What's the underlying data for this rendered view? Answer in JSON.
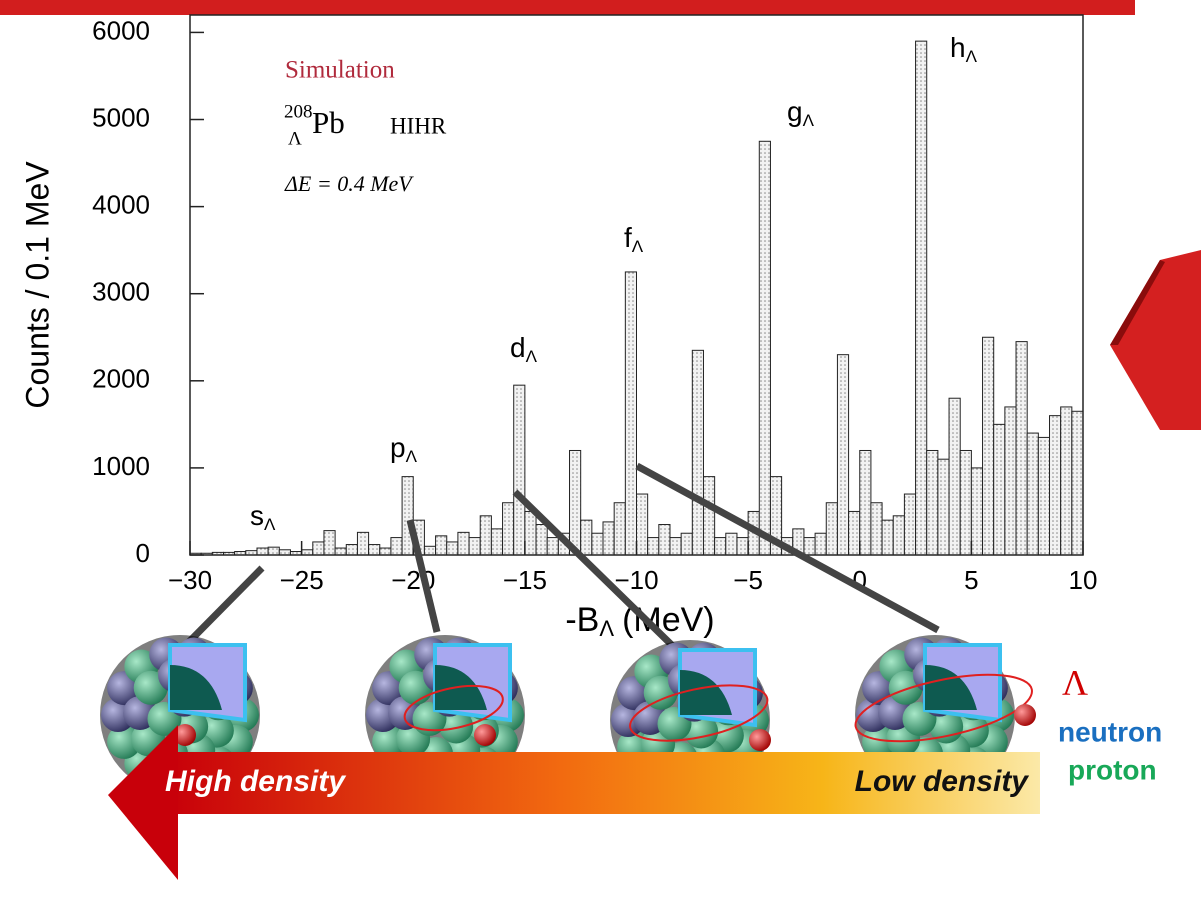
{
  "chart_data": {
    "type": "histogram",
    "y_label": "Counts / 0.1 MeV",
    "x_label": {
      "main": "-B",
      "sub": "Λ",
      "unit": "(MeV)"
    },
    "bins": [
      -30,
      -29.5,
      -29,
      -28.5,
      -28,
      -27.5,
      -27,
      -26.5,
      -26,
      -25.5,
      -25,
      -24.5,
      -24,
      -23.5,
      -23,
      -22.5,
      -22,
      -21.5,
      -21,
      -20.5,
      -20,
      -19.5,
      -19,
      -18.5,
      -18,
      -17.5,
      -17,
      -16.5,
      -16,
      -15.5,
      -15,
      -14.5,
      -14,
      -13.5,
      -13,
      -12.5,
      -12,
      -11.5,
      -11,
      -10.5,
      -10,
      -9.5,
      -9,
      -8.5,
      -8,
      -7.5,
      -7,
      -6.5,
      -6,
      -5.5,
      -5,
      -4.5,
      -4,
      -3.5,
      -3,
      -2.5,
      -2,
      -1.5,
      -1,
      -0.5,
      0,
      0.5,
      1,
      1.5,
      2,
      2.5,
      3,
      3.5,
      4,
      4.5,
      5,
      5.5,
      6,
      6.5,
      7,
      7.5,
      8,
      8.5,
      9,
      9.5,
      10
    ],
    "values": [
      20,
      20,
      30,
      30,
      40,
      50,
      80,
      90,
      60,
      40,
      60,
      150,
      280,
      80,
      120,
      260,
      120,
      80,
      200,
      900,
      400,
      100,
      220,
      150,
      260,
      200,
      450,
      300,
      600,
      1950,
      500,
      350,
      200,
      250,
      1200,
      400,
      250,
      380,
      600,
      3250,
      700,
      200,
      350,
      200,
      250,
      2350,
      900,
      200,
      250,
      200,
      500,
      4750,
      900,
      200,
      300,
      200,
      250,
      600,
      2300,
      500,
      1200,
      600,
      400,
      450,
      700,
      5900,
      1200,
      1100,
      1800,
      1200,
      1000,
      2500,
      1500,
      1700,
      2450,
      1400,
      1350,
      1600,
      1700,
      1650
    ],
    "color": "#d9d9d9",
    "xlim": [
      -30,
      10
    ],
    "ylim": [
      0,
      6200
    ],
    "xticks": [
      {
        "value": -30,
        "label": "−30"
      },
      {
        "value": -25,
        "label": "−25"
      },
      {
        "value": -20,
        "label": "−20"
      },
      {
        "value": -15,
        "label": "−15"
      },
      {
        "value": -10,
        "label": "−10"
      },
      {
        "value": -5,
        "label": "−5"
      },
      0,
      5,
      10
    ],
    "yticks": [
      0,
      1000,
      2000,
      3000,
      4000,
      5000,
      6000
    ],
    "inset_text": {
      "simulation": "Simulation",
      "mass": "208",
      "hyperon": "Λ",
      "nucleus": "Pb",
      "experiment": "HIHR",
      "resolution": "ΔE = 0.4 MeV"
    },
    "annotations": [
      {
        "text": "s",
        "sub": "Λ"
      },
      {
        "text": "p",
        "sub": "Λ"
      },
      {
        "text": "d",
        "sub": "Λ"
      },
      {
        "text": "f",
        "sub": "Λ"
      },
      {
        "text": "g",
        "sub": "Λ"
      },
      {
        "text": "h",
        "sub": "Λ"
      }
    ]
  },
  "legend": {
    "lambda": "Λ",
    "neutron": "neutron",
    "proton": "proton"
  },
  "density_arrow": {
    "high": "High density",
    "low": "Low density"
  }
}
